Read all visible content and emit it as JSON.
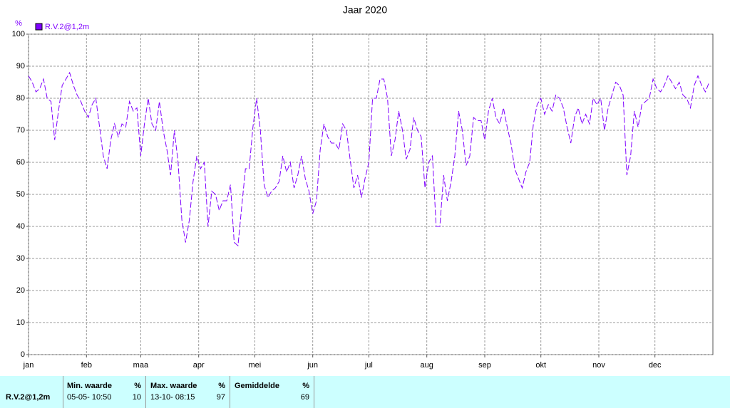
{
  "chart_data": {
    "type": "line",
    "title": "Jaar 2020",
    "y_unit": "%",
    "xlim": [
      0,
      366
    ],
    "xticks": [
      {
        "value": 0,
        "label": "jan"
      },
      {
        "value": 31,
        "label": "feb"
      },
      {
        "value": 60,
        "label": "maa"
      },
      {
        "value": 91,
        "label": "apr"
      },
      {
        "value": 121,
        "label": "mei"
      },
      {
        "value": 152,
        "label": "jun"
      },
      {
        "value": 182,
        "label": "jul"
      },
      {
        "value": 213,
        "label": "aug"
      },
      {
        "value": 244,
        "label": "sep"
      },
      {
        "value": 274,
        "label": "okt"
      },
      {
        "value": 305,
        "label": "nov"
      },
      {
        "value": 335,
        "label": "dec"
      }
    ],
    "ylim": [
      0,
      100
    ],
    "yticks": [
      0,
      10,
      20,
      30,
      40,
      50,
      60,
      70,
      80,
      90,
      100
    ],
    "grid": true,
    "legend": "top-left",
    "x": [
      0,
      2,
      4,
      6,
      8,
      10,
      12,
      14,
      16,
      18,
      20,
      22,
      24,
      26,
      28,
      30,
      32,
      34,
      36,
      38,
      40,
      42,
      44,
      46,
      48,
      50,
      52,
      54,
      56,
      58,
      60,
      62,
      64,
      66,
      68,
      70,
      72,
      74,
      76,
      78,
      80,
      82,
      84,
      86,
      88,
      90,
      92,
      94,
      96,
      98,
      100,
      102,
      104,
      106,
      108,
      110,
      112,
      114,
      116,
      118,
      120,
      122,
      124,
      126,
      128,
      130,
      132,
      134,
      136,
      138,
      140,
      142,
      144,
      146,
      148,
      150,
      152,
      154,
      156,
      158,
      160,
      162,
      164,
      166,
      168,
      170,
      172,
      174,
      176,
      178,
      180,
      182,
      184,
      186,
      188,
      190,
      192,
      194,
      196,
      198,
      200,
      202,
      204,
      206,
      208,
      210,
      212,
      214,
      216,
      218,
      220,
      222,
      224,
      226,
      228,
      230,
      232,
      234,
      236,
      238,
      240,
      242,
      244,
      246,
      248,
      250,
      252,
      254,
      256,
      258,
      260,
      262,
      264,
      266,
      268,
      270,
      272,
      274,
      276,
      278,
      280,
      282,
      284,
      286,
      288,
      290,
      292,
      294,
      296,
      298,
      300,
      302,
      304,
      306,
      308,
      310,
      312,
      314,
      316,
      318,
      320,
      322,
      324,
      326,
      328,
      330,
      332,
      334,
      336,
      338,
      340,
      342,
      344,
      346,
      348,
      350,
      352,
      354,
      356,
      358,
      360,
      362,
      364
    ],
    "series": [
      {
        "name": "R.V.2@1,2m",
        "color": "#7f00ff",
        "values": [
          87,
          85,
          82,
          83,
          86,
          80,
          79,
          67,
          76,
          84,
          86,
          88,
          84,
          81,
          79,
          76,
          74,
          78,
          80,
          71,
          62,
          58,
          67,
          72,
          68,
          72,
          71,
          79,
          76,
          77,
          62,
          72,
          80,
          72,
          70,
          79,
          70,
          64,
          56,
          70,
          60,
          42,
          35,
          42,
          54,
          62,
          58,
          60,
          40,
          51,
          50,
          45,
          48,
          48,
          53,
          35,
          34,
          46,
          58,
          58,
          71,
          80,
          70,
          53,
          49,
          51,
          52,
          54,
          62,
          57,
          60,
          52,
          56,
          62,
          55,
          51,
          44,
          48,
          64,
          72,
          68,
          66,
          66,
          64,
          72,
          70,
          61,
          52,
          56,
          49,
          55,
          60,
          80,
          80,
          86,
          86,
          80,
          62,
          67,
          76,
          70,
          61,
          64,
          74,
          70,
          68,
          52,
          60,
          62,
          40,
          40,
          56,
          48,
          54,
          62,
          76,
          70,
          59,
          62,
          74,
          73,
          73,
          67,
          76,
          80,
          74,
          72,
          77,
          71,
          66,
          58,
          55,
          52,
          57,
          60,
          72,
          78,
          80,
          75,
          78,
          76,
          81,
          80,
          77,
          71,
          66,
          74,
          77,
          72,
          75,
          72,
          80,
          78,
          80,
          70,
          77,
          81,
          85,
          84,
          81,
          56,
          62,
          76,
          71,
          78,
          79,
          80,
          86,
          83,
          82,
          84,
          87,
          85,
          83,
          85,
          81,
          80,
          77,
          84,
          87,
          84,
          82,
          85
        ]
      }
    ]
  },
  "stats": {
    "series": "R.V.2@1,2m",
    "columns": [
      {
        "title": "Min. waarde",
        "unit": "%",
        "time": "05-05- 10:50",
        "value": 10
      },
      {
        "title": "Max. waarde",
        "unit": "%",
        "time": "13-10- 08:15",
        "value": 97
      },
      {
        "title": "Gemiddelde",
        "unit": "%",
        "time": "",
        "value": 69
      }
    ]
  }
}
